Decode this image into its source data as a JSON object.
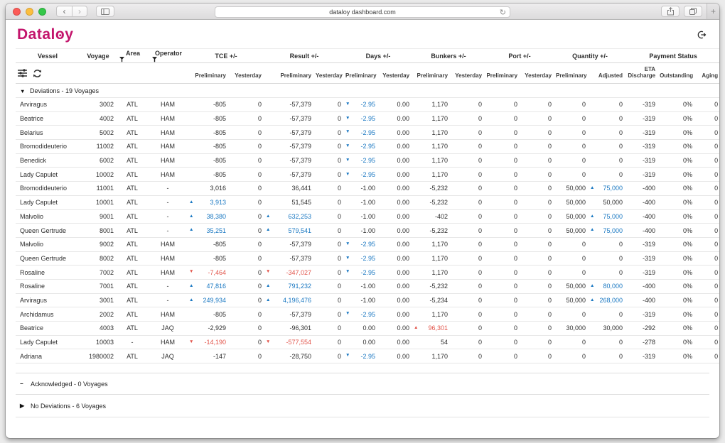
{
  "window": {
    "url": "dataloy dashboard.com",
    "traffic_lights": [
      "#fc5b57",
      "#fcbe3f",
      "#34c749"
    ]
  },
  "colors": {
    "accent": "#c3156c",
    "positive": "#1a78c2",
    "negative": "#e2544a"
  },
  "icons": {
    "chrome": [
      "back-chevron",
      "forward-chevron",
      "sidebar-toggle",
      "reload",
      "share",
      "tab-overview",
      "new-tab"
    ],
    "page": [
      "logout",
      "filter-funnel",
      "column-settings-sliders",
      "refresh"
    ]
  },
  "header": {
    "logo": "Dataloy"
  },
  "table": {
    "group_headers": [
      {
        "label": "Vessel",
        "span": 1
      },
      {
        "label": "Voyage",
        "span": 1
      },
      {
        "label": "Area",
        "span": 1,
        "filter": true
      },
      {
        "label": "Operator",
        "span": 1,
        "filter": true
      },
      {
        "label": "TCE +/-",
        "span": 2
      },
      {
        "label": "Result +/-",
        "span": 2
      },
      {
        "label": "Days +/-",
        "span": 2
      },
      {
        "label": "Bunkers +/-",
        "span": 2
      },
      {
        "label": "Port +/-",
        "span": 2
      },
      {
        "label": "Quantity +/-",
        "span": 2
      },
      {
        "label": "Payment Status",
        "span": 3
      }
    ],
    "sub_headers": [
      "Preliminary",
      "Yesterday",
      "Preliminary",
      "Yesterday",
      "Preliminary",
      "Yesterday",
      "Preliminary",
      "Yesterday",
      "Preliminary",
      "Yesterday",
      "Preliminary",
      "Adjusted",
      "ETA Discharge",
      "Outstanding",
      "Aging"
    ],
    "column_keys": [
      "vessel",
      "voyage",
      "area",
      "operator",
      "tce-preliminary",
      "tce-yesterday",
      "result-preliminary",
      "result-yesterday",
      "days-preliminary",
      "days-yesterday",
      "bunkers-preliminary",
      "bunkers-yesterday",
      "port-preliminary",
      "port-yesterday",
      "quantity-preliminary",
      "quantity-adjusted",
      "eta-discharge",
      "outstanding",
      "aging"
    ],
    "sections": [
      {
        "label": "Deviations - 19 Voyages",
        "state": "expanded",
        "icon": "▼",
        "rows": [
          [
            "Arviragus",
            "3002",
            "ATL",
            "HAM",
            "-805",
            "0",
            "-57,379",
            "0",
            {
              "v": "-2.95",
              "c": "blue",
              "a": "down"
            },
            "0.00",
            "1,170",
            "0",
            "0",
            "0",
            "0",
            "0",
            "-319",
            "0%",
            "0"
          ],
          [
            "Beatrice",
            "4002",
            "ATL",
            "HAM",
            "-805",
            "0",
            "-57,379",
            "0",
            {
              "v": "-2.95",
              "c": "blue",
              "a": "down"
            },
            "0.00",
            "1,170",
            "0",
            "0",
            "0",
            "0",
            "0",
            "-319",
            "0%",
            "0"
          ],
          [
            "Belarius",
            "5002",
            "ATL",
            "HAM",
            "-805",
            "0",
            "-57,379",
            "0",
            {
              "v": "-2.95",
              "c": "blue",
              "a": "down"
            },
            "0.00",
            "1,170",
            "0",
            "0",
            "0",
            "0",
            "0",
            "-319",
            "0%",
            "0"
          ],
          [
            "Bromodideuterio",
            "11002",
            "ATL",
            "HAM",
            "-805",
            "0",
            "-57,379",
            "0",
            {
              "v": "-2.95",
              "c": "blue",
              "a": "down"
            },
            "0.00",
            "1,170",
            "0",
            "0",
            "0",
            "0",
            "0",
            "-319",
            "0%",
            "0"
          ],
          [
            "Benedick",
            "6002",
            "ATL",
            "HAM",
            "-805",
            "0",
            "-57,379",
            "0",
            {
              "v": "-2.95",
              "c": "blue",
              "a": "down"
            },
            "0.00",
            "1,170",
            "0",
            "0",
            "0",
            "0",
            "0",
            "-319",
            "0%",
            "0"
          ],
          [
            "Lady Capulet",
            "10002",
            "ATL",
            "HAM",
            "-805",
            "0",
            "-57,379",
            "0",
            {
              "v": "-2.95",
              "c": "blue",
              "a": "down"
            },
            "0.00",
            "1,170",
            "0",
            "0",
            "0",
            "0",
            "0",
            "-319",
            "0%",
            "0"
          ],
          [
            "Bromodideuterio",
            "11001",
            "ATL",
            "-",
            "3,016",
            "0",
            "36,441",
            "0",
            "-1.00",
            "0.00",
            "-5,232",
            "0",
            "0",
            "0",
            "50,000",
            {
              "v": "75,000",
              "c": "blue",
              "a": "up"
            },
            "-400",
            "0%",
            "0"
          ],
          [
            "Lady Capulet",
            "10001",
            "ATL",
            "-",
            {
              "v": "3,913",
              "c": "blue",
              "a": "up"
            },
            "0",
            "51,545",
            "0",
            "-1.00",
            "0.00",
            "-5,232",
            "0",
            "0",
            "0",
            "50,000",
            "50,000",
            "-400",
            "0%",
            "0"
          ],
          [
            "Malvolio",
            "9001",
            "ATL",
            "-",
            {
              "v": "38,380",
              "c": "blue",
              "a": "up"
            },
            "0",
            {
              "v": "632,253",
              "c": "blue",
              "a": "up"
            },
            "0",
            "-1.00",
            "0.00",
            "-402",
            "0",
            "0",
            "0",
            "50,000",
            {
              "v": "75,000",
              "c": "blue",
              "a": "up"
            },
            "-400",
            "0%",
            "0"
          ],
          [
            "Queen Gertrude",
            "8001",
            "ATL",
            "-",
            {
              "v": "35,251",
              "c": "blue",
              "a": "up"
            },
            "0",
            {
              "v": "579,541",
              "c": "blue",
              "a": "up"
            },
            "0",
            "-1.00",
            "0.00",
            "-5,232",
            "0",
            "0",
            "0",
            "50,000",
            {
              "v": "75,000",
              "c": "blue",
              "a": "up"
            },
            "-400",
            "0%",
            "0"
          ],
          [
            "Malvolio",
            "9002",
            "ATL",
            "HAM",
            "-805",
            "0",
            "-57,379",
            "0",
            {
              "v": "-2.95",
              "c": "blue",
              "a": "down"
            },
            "0.00",
            "1,170",
            "0",
            "0",
            "0",
            "0",
            "0",
            "-319",
            "0%",
            "0"
          ],
          [
            "Queen Gertrude",
            "8002",
            "ATL",
            "HAM",
            "-805",
            "0",
            "-57,379",
            "0",
            {
              "v": "-2.95",
              "c": "blue",
              "a": "down"
            },
            "0.00",
            "1,170",
            "0",
            "0",
            "0",
            "0",
            "0",
            "-319",
            "0%",
            "0"
          ],
          [
            "Rosaline",
            "7002",
            "ATL",
            "HAM",
            {
              "v": "-7,464",
              "c": "red",
              "a": "down"
            },
            "0",
            {
              "v": "-347,027",
              "c": "red",
              "a": "down"
            },
            "0",
            {
              "v": "-2.95",
              "c": "blue",
              "a": "down"
            },
            "0.00",
            "1,170",
            "0",
            "0",
            "0",
            "0",
            "0",
            "-319",
            "0%",
            "0"
          ],
          [
            "Rosaline",
            "7001",
            "ATL",
            "-",
            {
              "v": "47,816",
              "c": "blue",
              "a": "up"
            },
            "0",
            {
              "v": "791,232",
              "c": "blue",
              "a": "up"
            },
            "0",
            "-1.00",
            "0.00",
            "-5,232",
            "0",
            "0",
            "0",
            "50,000",
            {
              "v": "80,000",
              "c": "blue",
              "a": "up"
            },
            "-400",
            "0%",
            "0"
          ],
          [
            "Arviragus",
            "3001",
            "ATL",
            "-",
            {
              "v": "249,934",
              "c": "blue",
              "a": "up"
            },
            "0",
            {
              "v": "4,196,476",
              "c": "blue",
              "a": "up"
            },
            "0",
            "-1.00",
            "0.00",
            "-5,234",
            "0",
            "0",
            "0",
            "50,000",
            {
              "v": "268,000",
              "c": "blue",
              "a": "up"
            },
            "-400",
            "0%",
            "0"
          ],
          [
            "Archidamus",
            "2002",
            "ATL",
            "HAM",
            "-805",
            "0",
            "-57,379",
            "0",
            {
              "v": "-2.95",
              "c": "blue",
              "a": "down"
            },
            "0.00",
            "1,170",
            "0",
            "0",
            "0",
            "0",
            "0",
            "-319",
            "0%",
            "0"
          ],
          [
            "Beatrice",
            "4003",
            "ATL",
            "JAQ",
            "-2,929",
            "0",
            "-96,301",
            "0",
            "0.00",
            "0.00",
            {
              "v": "96,301",
              "c": "red",
              "a": "up"
            },
            "0",
            "0",
            "0",
            "30,000",
            "30,000",
            "-292",
            "0%",
            "0"
          ],
          [
            "Lady Capulet",
            "10003",
            "-",
            "HAM",
            {
              "v": "-14,190",
              "c": "red",
              "a": "down"
            },
            "0",
            {
              "v": "-577,554",
              "c": "red",
              "a": "down"
            },
            "0",
            "0.00",
            "0.00",
            "54",
            "0",
            "0",
            "0",
            "0",
            "0",
            "-278",
            "0%",
            "0"
          ],
          [
            "Adriana",
            "1980002",
            "ATL",
            "JAQ",
            "-147",
            "0",
            "-28,750",
            "0",
            {
              "v": "-2.95",
              "c": "blue",
              "a": "down"
            },
            "0.00",
            "1,170",
            "0",
            "0",
            "0",
            "0",
            "0",
            "-319",
            "0%",
            "0"
          ]
        ]
      },
      {
        "label": "Acknowledged - 0 Voyages",
        "state": "empty",
        "icon": "−",
        "rows": []
      },
      {
        "label": "No Deviations - 6 Voyages",
        "state": "collapsed",
        "icon": "▶",
        "rows": []
      }
    ]
  }
}
